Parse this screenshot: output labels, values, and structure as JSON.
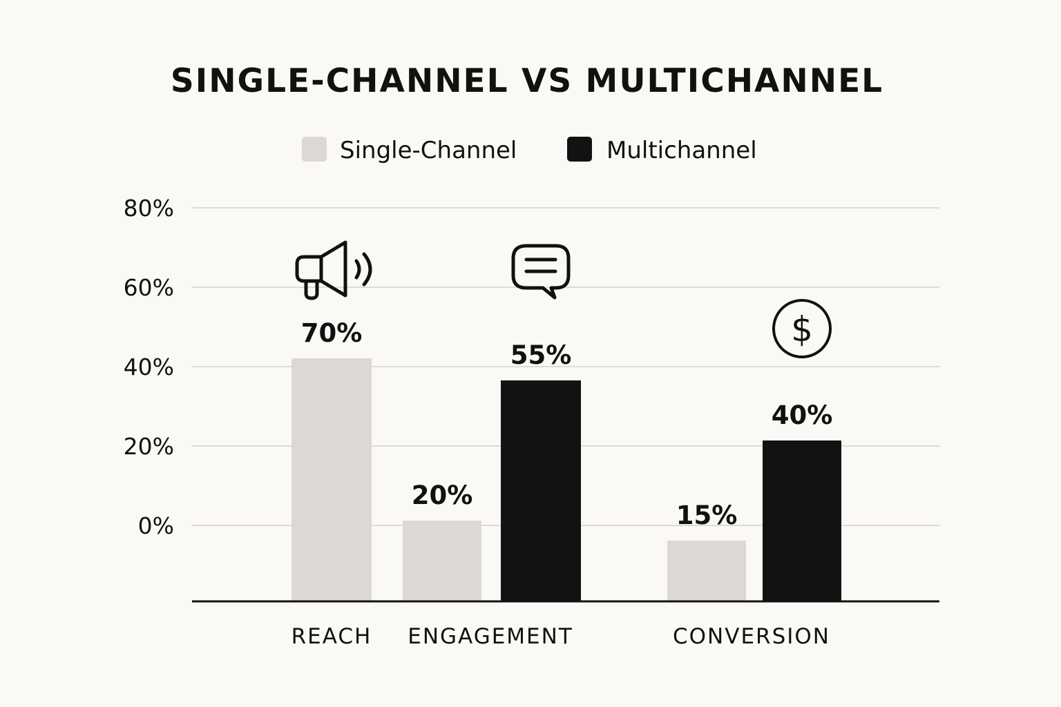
{
  "chart_data": {
    "type": "bar",
    "title": "SINGLE-CHANNEL VS MULTICHANNEL",
    "xlabel": "",
    "ylabel": "",
    "categories": [
      "REACH",
      "ENGAGEMENT",
      "CONVERSION"
    ],
    "series": [
      {
        "name": "Single-Channel",
        "color": "#dcd9d4",
        "values": [
          70,
          20,
          15
        ],
        "value_labels": [
          "70%",
          "20%",
          "15%"
        ]
      },
      {
        "name": "Multichannel",
        "color": "#121212",
        "values": [
          null,
          55,
          40
        ],
        "value_labels": [
          "",
          "55%",
          "40%"
        ]
      }
    ],
    "y_ticks": [
      {
        "value": 0,
        "label": "0%"
      },
      {
        "value": 20,
        "label": "20%"
      },
      {
        "value": 40,
        "label": "40%"
      },
      {
        "value": 60,
        "label": "60%"
      },
      {
        "value": 80,
        "label": "80%"
      }
    ],
    "grid": true,
    "legend_position": "top-center",
    "icons": [
      "megaphone-icon",
      "chat-bubble-icon",
      "dollar-circle-icon"
    ]
  }
}
